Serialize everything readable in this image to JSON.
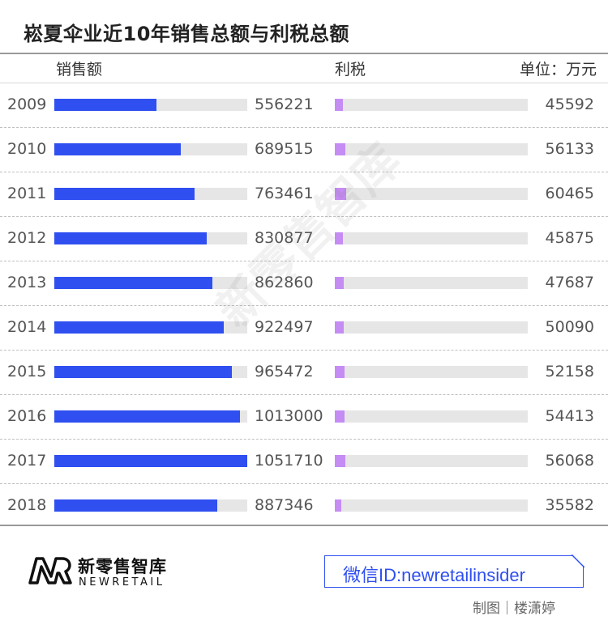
{
  "title": "崧夏伞业近10年销售总额与利税总额",
  "header": {
    "sales_label": "销售额",
    "tax_label": "利税",
    "unit_label": "单位：万元"
  },
  "chart_data": {
    "type": "bar",
    "title": "崧夏伞业近10年销售总额与利税总额",
    "unit": "单位：万元",
    "categories": [
      "2009",
      "2010",
      "2011",
      "2012",
      "2013",
      "2014",
      "2015",
      "2016",
      "2017",
      "2018"
    ],
    "series": [
      {
        "name": "销售额",
        "values": [
          556221,
          689515,
          763461,
          830877,
          862860,
          922497,
          965472,
          1013000,
          1051710,
          887346
        ],
        "color": "#2f4ff0"
      },
      {
        "name": "利税",
        "values": [
          45592,
          56133,
          60465,
          45875,
          47687,
          50090,
          52158,
          54413,
          56068,
          35582
        ],
        "color": "#c58cf3"
      }
    ],
    "track_color": "#e6e6e6",
    "orientation": "horizontal"
  },
  "watermark": "新零售智库",
  "footer": {
    "brand_cn": "新零售智库",
    "brand_en": "NEWRETAIL",
    "wechat": "微信ID:newretailinsider",
    "credit": "制图｜楼潇婷"
  }
}
